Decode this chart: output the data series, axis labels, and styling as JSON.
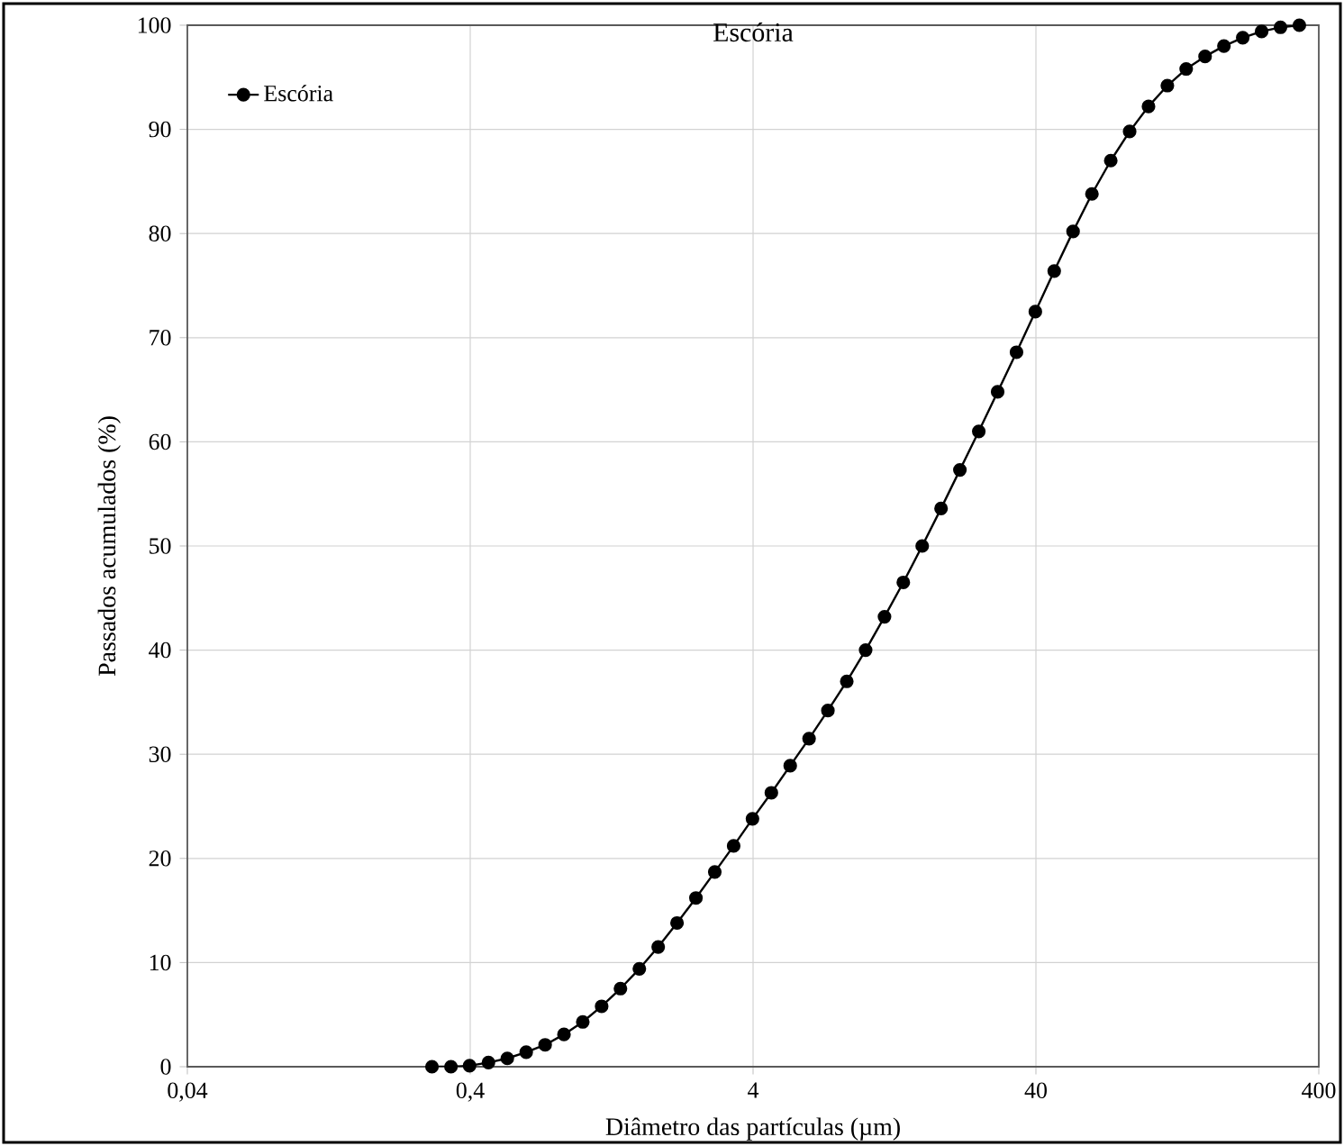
{
  "chart_data": {
    "type": "line",
    "title": "Escória",
    "xlabel": "Diâmetro das partículas (µm)",
    "ylabel": "Passados acumulados (%)",
    "log": "x",
    "grid": true,
    "legend": "top left",
    "marker": "circle",
    "line_style": "solid",
    "xlim": [
      0.04,
      400
    ],
    "ylim": [
      0,
      100
    ],
    "xticks": [
      {
        "value": 0.04,
        "label": "0,04"
      },
      {
        "value": 0.4,
        "label": "0,4"
      },
      4,
      40,
      400
    ],
    "yticks": [
      0,
      10,
      20,
      30,
      40,
      50,
      60,
      70,
      80,
      90,
      100
    ],
    "series": [
      {
        "name": "Escória",
        "color": "#000000",
        "x": [
          0.293,
          0.342,
          0.398,
          0.464,
          0.541,
          0.631,
          0.736,
          0.858,
          1,
          1.166,
          1.359,
          1.585,
          1.848,
          2.154,
          2.512,
          2.929,
          3.415,
          3.981,
          4.642,
          5.412,
          6.31,
          7.356,
          8.577,
          10,
          11.66,
          13.59,
          15.85,
          18.48,
          21.54,
          25.12,
          29.29,
          34.15,
          39.81,
          46.42,
          54.12,
          63.1,
          73.56,
          85.77,
          100,
          116.6,
          135.9,
          158.5,
          184.8,
          215.4,
          251.2,
          292.9,
          341.5
        ],
        "values": [
          0,
          0,
          0.1,
          0.4,
          0.8,
          1.4,
          2.1,
          3.1,
          4.3,
          5.8,
          7.5,
          9.4,
          11.5,
          13.8,
          16.2,
          18.7,
          21.2,
          23.8,
          26.3,
          28.9,
          31.5,
          34.2,
          37,
          40,
          43.2,
          46.5,
          50,
          53.6,
          57.3,
          61,
          64.8,
          68.6,
          72.5,
          76.4,
          80.2,
          83.8,
          87,
          89.8,
          92.2,
          94.2,
          95.8,
          97,
          98,
          98.8,
          99.4,
          99.8,
          100
        ]
      }
    ]
  }
}
